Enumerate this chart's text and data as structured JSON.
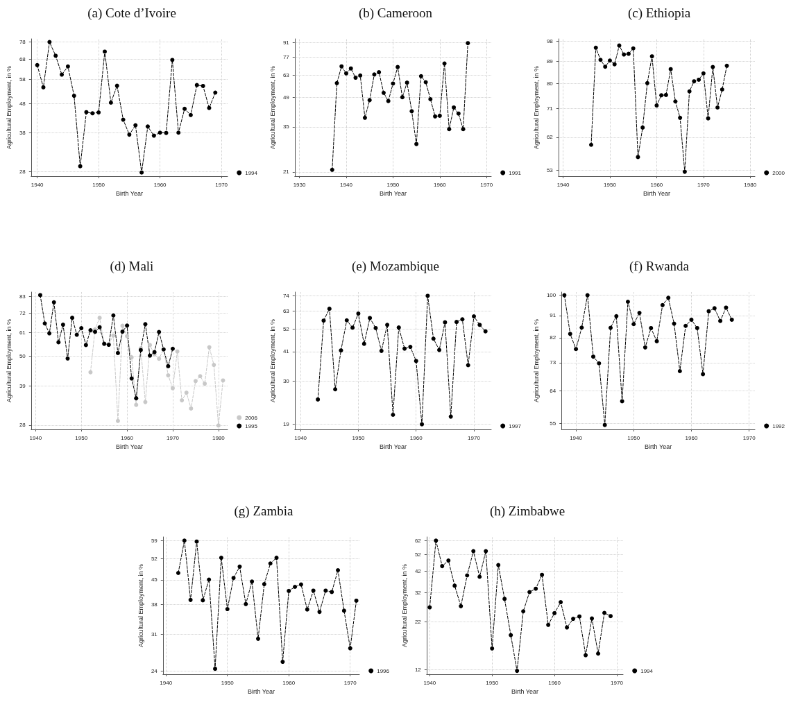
{
  "chart_data": [
    {
      "type": "line",
      "title": "(a) Cote d’Ivoire",
      "xlabel": "Birth Year",
      "ylabel": "Agricultural Employment, in %",
      "log": true,
      "grid": true,
      "legend": "bottom right",
      "marker": "circle",
      "line_style": "dashed",
      "xlim": [
        1939,
        1971
      ],
      "xticks": [
        1940,
        1950,
        1960,
        1970
      ],
      "ylim": [
        27,
        80
      ],
      "yticks": [
        28,
        38,
        48,
        58,
        68,
        78
      ],
      "x": [
        1940,
        1941,
        1942,
        1943,
        1944,
        1945,
        1946,
        1947,
        1948,
        1949,
        1950,
        1951,
        1952,
        1953,
        1954,
        1955,
        1956,
        1957,
        1958,
        1959,
        1960,
        1961,
        1962,
        1963,
        1964,
        1965,
        1966,
        1967,
        1968,
        1969
      ],
      "series": [
        {
          "name": "1994",
          "color": "#000000",
          "values": [
            65,
            54.5,
            78,
            70,
            60.3,
            64.3,
            51,
            29.2,
            44.8,
            44.4,
            44.7,
            72.3,
            48.3,
            55.2,
            42.2,
            37.5,
            40.4,
            27.8,
            40,
            37.2,
            38.1,
            38,
            67.7,
            38.1,
            46,
            43.8,
            55.5,
            55.1,
            46.3,
            52.3
          ]
        }
      ]
    },
    {
      "type": "line",
      "title": "(b) Cameroon",
      "xlabel": "Birth Year",
      "ylabel": "Agricultural Employment, in %",
      "log": true,
      "grid": true,
      "legend": "bottom right",
      "marker": "circle",
      "line_style": "dashed",
      "xlim": [
        1929,
        1971
      ],
      "xticks": [
        1930,
        1940,
        1950,
        1960,
        1970
      ],
      "ylim": [
        20,
        95
      ],
      "yticks": [
        21,
        35,
        49,
        63,
        77,
        91
      ],
      "x": [
        1937,
        1938,
        1939,
        1940,
        1941,
        1942,
        1943,
        1944,
        1945,
        1946,
        1947,
        1948,
        1949,
        1950,
        1951,
        1952,
        1953,
        1954,
        1955,
        1956,
        1957,
        1958,
        1959,
        1960,
        1961,
        1962,
        1963,
        1964,
        1965,
        1966
      ],
      "series": [
        {
          "name": "1991",
          "color": "#000000",
          "values": [
            21.5,
            57.5,
            69.5,
            64.2,
            67.9,
            61.1,
            62.7,
            38.8,
            47.4,
            63.4,
            65.1,
            51.5,
            46.9,
            57.2,
            69,
            49,
            57.8,
            41.8,
            28.8,
            62.2,
            58.1,
            47.9,
            39.4,
            39.7,
            71.8,
            34.1,
            43.6,
            40.7,
            34.1,
            90.5
          ]
        }
      ]
    },
    {
      "type": "line",
      "title": "(c) Ethiopia",
      "xlabel": "Birth Year",
      "ylabel": "Agricultural Employment, in %",
      "log": true,
      "grid": true,
      "legend": "bottom right",
      "marker": "circle",
      "line_style": "dashed",
      "xlim": [
        1939,
        1981
      ],
      "xticks": [
        1940,
        1950,
        1960,
        1970,
        1980
      ],
      "ylim": [
        51.5,
        99
      ],
      "yticks": [
        53,
        62,
        71,
        80,
        89,
        98
      ],
      "x": [
        1946,
        1947,
        1948,
        1949,
        1950,
        1951,
        1952,
        1953,
        1954,
        1955,
        1956,
        1957,
        1958,
        1959,
        1960,
        1961,
        1962,
        1963,
        1964,
        1965,
        1966,
        1967,
        1968,
        1969,
        1970,
        1971,
        1972,
        1973,
        1974,
        1975
      ],
      "series": [
        {
          "name": "2000",
          "color": "#000000",
          "values": [
            59.8,
            94.9,
            89.6,
            86.7,
            89.3,
            87.7,
            95.9,
            91.9,
            92.2,
            94.6,
            56.4,
            64.9,
            80.2,
            91.1,
            72.1,
            75.7,
            75.8,
            85.7,
            73.5,
            68,
            52.6,
            77.1,
            80.9,
            81.5,
            84,
            67.8,
            86.6,
            71.4,
            77.8,
            87.1
          ]
        }
      ]
    },
    {
      "type": "line",
      "title": "(d) Mali",
      "xlabel": "Birth Year",
      "ylabel": "Agricultural Employment, in %",
      "log": true,
      "grid": true,
      "legend": "bottom right",
      "marker": "circle",
      "line_style": "dashed",
      "xlim": [
        1939,
        1982
      ],
      "xticks": [
        1940,
        1950,
        1960,
        1970,
        1980
      ],
      "ylim": [
        27,
        86
      ],
      "yticks": [
        28,
        39,
        50,
        61,
        72,
        83
      ],
      "series": [
        {
          "name": "2006",
          "color": "#c8c8c8",
          "x": [
            1952,
            1953,
            1954,
            1955,
            1956,
            1957,
            1958,
            1959,
            1960,
            1961,
            1962,
            1963,
            1964,
            1965,
            1966,
            1967,
            1968,
            1969,
            1970,
            1971,
            1972,
            1973,
            1974,
            1975,
            1976,
            1977,
            1978,
            1979,
            1980,
            1981
          ],
          "values": [
            43.7,
            62.8,
            69.2,
            55.4,
            55.4,
            59.6,
            29,
            64.7,
            59.3,
            49.6,
            33.2,
            53.5,
            34,
            55,
            50.8,
            49,
            53.1,
            42.6,
            38.2,
            52.1,
            34.5,
            36.8,
            32.2,
            40.6,
            42.3,
            39.7,
            54,
            46.5,
            27.9,
            40.8
          ]
        },
        {
          "name": "1995",
          "color": "#000000",
          "x": [
            1941,
            1942,
            1943,
            1944,
            1945,
            1946,
            1947,
            1948,
            1949,
            1950,
            1951,
            1952,
            1953,
            1954,
            1955,
            1956,
            1957,
            1958,
            1959,
            1960,
            1961,
            1962,
            1963,
            1964,
            1965,
            1966,
            1967,
            1968,
            1969,
            1970
          ],
          "values": [
            83.8,
            66,
            60.7,
            78.9,
            56.3,
            65.3,
            49.1,
            69.2,
            60,
            63.4,
            55,
            62.3,
            61.5,
            63.9,
            55.6,
            55.1,
            70.6,
            51.4,
            61.6,
            64.8,
            41.5,
            35.1,
            52.7,
            65.6,
            50.3,
            51.8,
            61.4,
            53,
            46,
            53.3
          ]
        }
      ]
    },
    {
      "type": "line",
      "title": "(e) Mozambique",
      "xlabel": "Birth Year",
      "ylabel": "Agricultural Employment, in %",
      "log": true,
      "grid": true,
      "legend": "bottom right",
      "marker": "circle",
      "line_style": "dashed",
      "xlim": [
        1939,
        1973
      ],
      "xticks": [
        1940,
        1950,
        1960,
        1970
      ],
      "ylim": [
        18,
        77
      ],
      "yticks": [
        19,
        30,
        41,
        52,
        63,
        74
      ],
      "x": [
        1943,
        1944,
        1945,
        1946,
        1947,
        1948,
        1949,
        1950,
        1951,
        1952,
        1953,
        1954,
        1955,
        1956,
        1957,
        1958,
        1959,
        1960,
        1961,
        1962,
        1963,
        1964,
        1965,
        1966,
        1967,
        1968,
        1969,
        1970,
        1971,
        1972
      ],
      "series": [
        {
          "name": "1997",
          "color": "#000000",
          "values": [
            24.7,
            56.9,
            64.5,
            27.5,
            41.5,
            57.1,
            52.8,
            61.3,
            44.5,
            58.5,
            52.6,
            41.3,
            54.4,
            21,
            52.9,
            42.3,
            43.1,
            37.1,
            19,
            74,
            47,
            41.7,
            55.9,
            20.6,
            56.1,
            57.7,
            35.5,
            59.5,
            54.4,
            50.8
          ]
        }
      ]
    },
    {
      "type": "line",
      "title": "(f) Rwanda",
      "xlabel": "Birth Year",
      "ylabel": "Agricultural Employment, in %",
      "log": true,
      "grid": true,
      "legend": "bottom right",
      "marker": "circle",
      "line_style": "dashed",
      "xlim": [
        1937.5,
        1971
      ],
      "xticks": [
        1940,
        1950,
        1960,
        1970
      ],
      "ylim": [
        53.5,
        101.5
      ],
      "yticks": [
        55,
        64,
        73,
        82,
        91,
        100
      ],
      "x": [
        1938,
        1939,
        1940,
        1941,
        1942,
        1943,
        1944,
        1945,
        1946,
        1947,
        1948,
        1949,
        1950,
        1951,
        1952,
        1953,
        1954,
        1955,
        1956,
        1957,
        1958,
        1959,
        1960,
        1961,
        1962,
        1963,
        1964,
        1965,
        1966,
        1967
      ],
      "series": [
        {
          "name": "1992",
          "color": "#000000",
          "values": [
            100,
            83.5,
            77.8,
            86,
            100,
            75.1,
            72.8,
            54.6,
            85.9,
            90.7,
            61,
            97,
            87.4,
            92.1,
            78.4,
            85.8,
            80.7,
            95.5,
            98.8,
            87.6,
            70.2,
            86.7,
            89.2,
            85.8,
            69.2,
            92.8,
            94.1,
            88.7,
            94.4,
            89.2
          ]
        }
      ]
    },
    {
      "type": "line",
      "title": "(g) Zambia",
      "xlabel": "Birth Year",
      "ylabel": "Agricultural Employment, in %",
      "log": true,
      "grid": true,
      "legend": "bottom right",
      "marker": "circle",
      "line_style": "dashed",
      "xlim": [
        1939.5,
        1971.5
      ],
      "xticks": [
        1940,
        1950,
        1960,
        1970
      ],
      "ylim": [
        23.5,
        60.5
      ],
      "yticks": [
        24,
        31,
        38,
        45,
        52,
        59
      ],
      "x": [
        1942,
        1943,
        1944,
        1945,
        1946,
        1947,
        1948,
        1949,
        1950,
        1951,
        1952,
        1953,
        1954,
        1955,
        1956,
        1957,
        1958,
        1959,
        1960,
        1961,
        1962,
        1963,
        1964,
        1965,
        1966,
        1967,
        1968,
        1969,
        1970,
        1971
      ],
      "series": [
        {
          "name": "1996",
          "color": "#000000",
          "values": [
            47.2,
            59,
            39.2,
            58.6,
            39.1,
            45.1,
            24.4,
            52.4,
            36.8,
            45.6,
            49.3,
            38.1,
            44.5,
            30,
            43.7,
            50.4,
            52.4,
            25.6,
            41.7,
            42.9,
            43.6,
            36.7,
            41.8,
            36.1,
            41.8,
            41.4,
            48.1,
            36.4,
            28.1,
            39
          ]
        }
      ]
    },
    {
      "type": "line",
      "title": "(h) Zimbabwe",
      "xlabel": "Birth Year",
      "ylabel": "Agricultural Employment, in %",
      "log": true,
      "grid": true,
      "legend": "bottom right",
      "marker": "circle",
      "line_style": "dashed",
      "xlim": [
        1939.5,
        1971
      ],
      "xticks": [
        1940,
        1950,
        1960,
        1970
      ],
      "ylim": [
        11.3,
        65
      ],
      "yticks": [
        12,
        22,
        32,
        42,
        52,
        62
      ],
      "x": [
        1940,
        1941,
        1942,
        1943,
        1944,
        1945,
        1946,
        1947,
        1948,
        1949,
        1950,
        1951,
        1952,
        1953,
        1954,
        1955,
        1956,
        1957,
        1958,
        1959,
        1960,
        1961,
        1962,
        1963,
        1964,
        1965,
        1966,
        1967,
        1968,
        1969
      ],
      "series": [
        {
          "name": "1994",
          "color": "#000000",
          "values": [
            26.5,
            62,
            44.8,
            48.1,
            34.9,
            26.9,
            39.8,
            54.2,
            39.1,
            54.2,
            15.7,
            45.4,
            29.5,
            18.6,
            11.8,
            25.2,
            32.2,
            33.6,
            40.1,
            21.2,
            24.6,
            28.3,
            20.5,
            22.9,
            23.6,
            14.4,
            23,
            14.7,
            24.7,
            23.7
          ]
        }
      ]
    }
  ]
}
